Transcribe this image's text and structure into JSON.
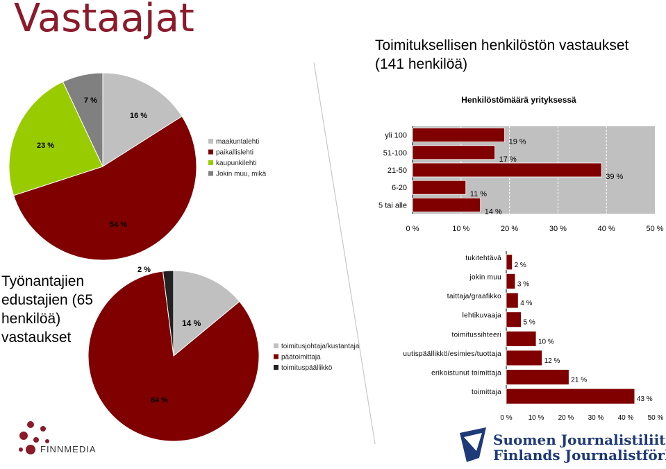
{
  "page": {
    "title": "Vastaajat",
    "staff_title": "Toimituksellisen henkilöstön vastaukset (141 henkilöä)",
    "employer_title": "Työnantajien edustajien (65 henkilöä) vastaukset"
  },
  "logos": {
    "finnmedia": "FINNMEDIA",
    "sjl_line1": "Suomen Journalistiliitto",
    "sjl_line2": "Finlands Journalistförbund"
  },
  "colors": {
    "red": "#800000",
    "gray": "#c0c0c0",
    "green": "#99cc00",
    "dark": "#222222",
    "darkgray": "#808080",
    "title": "#8b1a2b"
  },
  "chart_data": [
    {
      "type": "pie",
      "slices": [
        {
          "name": "maakuntalehti",
          "value": 16,
          "label": "16 %",
          "color": "#c0c0c0"
        },
        {
          "name": "paikallislehti",
          "value": 54,
          "label": "54 %",
          "color": "#800000"
        },
        {
          "name": "kaupunkilehti",
          "value": 23,
          "label": "23 %",
          "color": "#99cc00"
        },
        {
          "name": "Jokin muu, mikä",
          "value": 7,
          "label": "7 %",
          "color": "#808080"
        }
      ],
      "legend": [
        "maakuntalehti",
        "paikallislehti",
        "kaupunkilehti",
        "Jokin muu, mikä"
      ]
    },
    {
      "type": "bar",
      "orientation": "horizontal",
      "title": "Henkilöstömäärä yrityksessä",
      "categories": [
        "yli 100",
        "51-100",
        "21-50",
        "6-20",
        "5 tai alle"
      ],
      "values": [
        19,
        17,
        39,
        11,
        14
      ],
      "labels": [
        "19 %",
        "17 %",
        "39 %",
        "11 %",
        "14 %"
      ],
      "xlim": [
        0,
        50
      ],
      "xticks": [
        "0 %",
        "10 %",
        "20 %",
        "30 %",
        "40 %",
        "50 %"
      ],
      "grid": true
    },
    {
      "type": "pie",
      "slices": [
        {
          "name": "toimitusjohtaja/kustantaja",
          "value": 14,
          "label": "14 %",
          "color": "#c0c0c0"
        },
        {
          "name": "päätoimittaja",
          "value": 84,
          "label": "84 %",
          "color": "#800000"
        },
        {
          "name": "toimituspäällikkö",
          "value": 2,
          "label": "2 %",
          "color": "#222222"
        }
      ],
      "legend": [
        "toimitusjohtaja/kustantaja",
        "päätoimittaja",
        "toimituspäällikkö"
      ]
    },
    {
      "type": "bar",
      "orientation": "horizontal",
      "categories": [
        "tukitehtävä",
        "jokin muu",
        "taittaja/graafikko",
        "lehtikuvaaja",
        "toimitussihteeri",
        "uutispäällikkö/esimies/tuottaja",
        "erikoistunut toimittaja",
        "toimittaja"
      ],
      "values": [
        2,
        3,
        4,
        5,
        10,
        12,
        21,
        43
      ],
      "labels": [
        "2 %",
        "3 %",
        "4 %",
        "5 %",
        "10 %",
        "12 %",
        "21 %",
        "43 %"
      ],
      "xlim": [
        0,
        50
      ],
      "xticks": [
        "0 %",
        "10 %",
        "20 %",
        "30 %",
        "40 %",
        "50 %"
      ],
      "grid": false
    }
  ]
}
